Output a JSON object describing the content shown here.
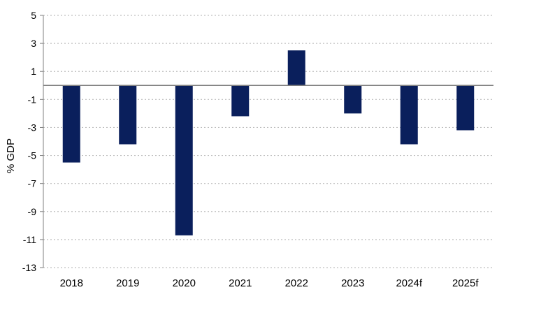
{
  "chart_data": {
    "type": "bar",
    "title": "",
    "xlabel": "",
    "ylabel": "% GDP",
    "categories": [
      "2018",
      "2019",
      "2020",
      "2021",
      "2022",
      "2023",
      "2024f",
      "2025f"
    ],
    "values": [
      -5.5,
      -4.2,
      -10.7,
      -2.2,
      2.5,
      -2.0,
      -4.2,
      -3.2
    ],
    "ylim": [
      -13,
      5
    ],
    "yticks": [
      5,
      3,
      1,
      -1,
      -3,
      -5,
      -7,
      -9,
      -11,
      -13
    ],
    "grid": "horizontal dotted",
    "legend": "none",
    "bar_color": "#0a1f5c",
    "axis_color": "#7f7f7f",
    "grid_color": "#bfbfbf"
  }
}
